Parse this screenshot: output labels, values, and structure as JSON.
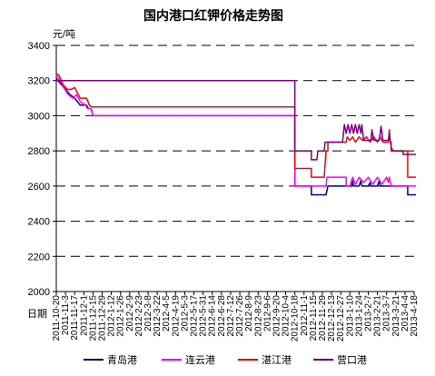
{
  "chart_data": {
    "type": "line",
    "title": "国内港口红钾价格走势图",
    "ylabel": "元/吨",
    "xlabel": "日期",
    "ylim": [
      2000,
      3400
    ],
    "yticks": [
      2000,
      2200,
      2400,
      2600,
      2800,
      3000,
      3200,
      3400
    ],
    "grid": true,
    "legend_position": "bottom",
    "x_tick_labels": [
      "2011-10-20",
      "2011-11-3",
      "2011-11-17",
      "2011-12-1",
      "2011-12-15",
      "2011-12-29",
      "2012-1-12",
      "2012-1-26",
      "2012-2-9",
      "2012-2-23",
      "2012-3-8",
      "2012-3-22",
      "2012-4-5",
      "2012-4-19",
      "2012-5-3",
      "2012-5-17",
      "2012-5-31",
      "2012-6-14",
      "2012-6-28",
      "2012-7-12",
      "2012-7-26",
      "2012-8-9",
      "2012-8-23",
      "2012-9-6",
      "2012-9-20",
      "2012-10-4",
      "2012-10-18",
      "2012-11-1",
      "2012-11-15",
      "2012-11-29",
      "2012-12-13",
      "2012-12-27",
      "2013-1-10",
      "2013-1-24",
      "2013-2-7",
      "2013-2-21",
      "2013-3-7",
      "2013-3-21",
      "2013-4-4",
      "2013-4-18"
    ],
    "series": [
      {
        "name": "青岛港",
        "color": "#000080",
        "points": [
          [
            0,
            3210
          ],
          [
            0.5,
            3180
          ],
          [
            1,
            3150
          ],
          [
            1.5,
            3120
          ],
          [
            2,
            3100
          ],
          [
            2.3,
            3080
          ],
          [
            2.6,
            3060
          ],
          [
            3.3,
            3060
          ],
          [
            3.5,
            3040
          ],
          [
            3.8,
            3040
          ],
          [
            4,
            3000
          ],
          [
            26,
            3000
          ],
          [
            26,
            2600
          ],
          [
            27.8,
            2600
          ],
          [
            27.8,
            2550
          ],
          [
            29.4,
            2550
          ],
          [
            29.6,
            2600
          ],
          [
            32.2,
            2600
          ],
          [
            32.3,
            2630
          ],
          [
            32.4,
            2600
          ],
          [
            33,
            2600
          ],
          [
            33.2,
            2630
          ],
          [
            33.3,
            2600
          ],
          [
            34,
            2600
          ],
          [
            34.2,
            2620
          ],
          [
            34.3,
            2600
          ],
          [
            35,
            2600
          ],
          [
            35.2,
            2630
          ],
          [
            35.3,
            2600
          ],
          [
            38.3,
            2600
          ],
          [
            38.3,
            2550
          ],
          [
            39.2,
            2550
          ]
        ]
      },
      {
        "name": "连云港",
        "color": "#ff00ff",
        "points": [
          [
            0,
            3230
          ],
          [
            0.4,
            3200
          ],
          [
            0.8,
            3160
          ],
          [
            1.3,
            3120
          ],
          [
            1.8,
            3100
          ],
          [
            2.2,
            3120
          ],
          [
            2.6,
            3080
          ],
          [
            3.2,
            3060
          ],
          [
            3.4,
            3040
          ],
          [
            3.8,
            3040
          ],
          [
            4,
            3000
          ],
          [
            26,
            3000
          ],
          [
            26,
            2600
          ],
          [
            29.4,
            2600
          ],
          [
            29.5,
            2650
          ],
          [
            31.6,
            2650
          ],
          [
            31.6,
            2600
          ],
          [
            32,
            2600
          ],
          [
            32.3,
            2650
          ],
          [
            32.6,
            2610
          ],
          [
            33,
            2650
          ],
          [
            33.5,
            2620
          ],
          [
            34,
            2650
          ],
          [
            34.5,
            2610
          ],
          [
            35,
            2650
          ],
          [
            35.5,
            2610
          ],
          [
            36,
            2650
          ],
          [
            36.2,
            2620
          ],
          [
            36.3,
            2650
          ],
          [
            36.5,
            2600
          ],
          [
            39.2,
            2600
          ]
        ]
      },
      {
        "name": "湛江港",
        "color": "#ff0000",
        "points": [
          [
            0,
            3240
          ],
          [
            0.3,
            3230
          ],
          [
            0.7,
            3180
          ],
          [
            1.2,
            3150
          ],
          [
            1.6,
            3150
          ],
          [
            2,
            3160
          ],
          [
            2.4,
            3120
          ],
          [
            2.6,
            3100
          ],
          [
            3.3,
            3100
          ],
          [
            3.6,
            3060
          ],
          [
            3.8,
            3050
          ],
          [
            26,
            3050
          ],
          [
            26,
            2700
          ],
          [
            27.8,
            2700
          ],
          [
            27.8,
            2650
          ],
          [
            29.2,
            2650
          ],
          [
            29.4,
            2800
          ],
          [
            29.6,
            2800
          ],
          [
            29.6,
            2850
          ],
          [
            31.6,
            2850
          ],
          [
            31.7,
            2880
          ],
          [
            32,
            2860
          ],
          [
            32.3,
            2880
          ],
          [
            32.6,
            2850
          ],
          [
            33,
            2880
          ],
          [
            33.4,
            2860
          ],
          [
            33.8,
            2880
          ],
          [
            34.2,
            2850
          ],
          [
            34.6,
            2880
          ],
          [
            35,
            2850
          ],
          [
            35.3,
            2880
          ],
          [
            35.6,
            2850
          ],
          [
            36.2,
            2850
          ],
          [
            36.3,
            2920
          ],
          [
            36.4,
            2850
          ],
          [
            36.5,
            2850
          ],
          [
            36.5,
            2800
          ],
          [
            38.3,
            2800
          ],
          [
            38.3,
            2650
          ],
          [
            39.2,
            2650
          ]
        ]
      },
      {
        "name": "营口港",
        "color": "#800080",
        "points": [
          [
            0,
            3200
          ],
          [
            26,
            3200
          ],
          [
            26,
            2800
          ],
          [
            27.8,
            2800
          ],
          [
            27.8,
            2750
          ],
          [
            28.4,
            2750
          ],
          [
            28.5,
            2800
          ],
          [
            29.2,
            2800
          ],
          [
            29.3,
            2850
          ],
          [
            31.2,
            2850
          ],
          [
            31.3,
            2900
          ],
          [
            31.4,
            2950
          ],
          [
            31.6,
            2900
          ],
          [
            31.8,
            2950
          ],
          [
            32,
            2900
          ],
          [
            32.2,
            2950
          ],
          [
            32.4,
            2900
          ],
          [
            32.6,
            2950
          ],
          [
            32.8,
            2900
          ],
          [
            33,
            2950
          ],
          [
            33.2,
            2900
          ],
          [
            33.3,
            2950
          ],
          [
            33.5,
            2860
          ],
          [
            34.3,
            2860
          ],
          [
            34.4,
            2920
          ],
          [
            34.6,
            2860
          ],
          [
            35.2,
            2860
          ],
          [
            35.4,
            2940
          ],
          [
            35.6,
            2860
          ],
          [
            36.2,
            2860
          ],
          [
            36.3,
            2900
          ],
          [
            36.4,
            2860
          ],
          [
            36.5,
            2820
          ],
          [
            36.7,
            2800
          ],
          [
            37.8,
            2800
          ],
          [
            37.8,
            2780
          ],
          [
            39.2,
            2780
          ]
        ]
      }
    ]
  }
}
